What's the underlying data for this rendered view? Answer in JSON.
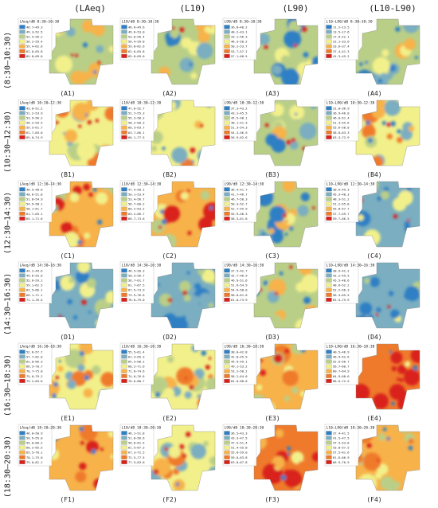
{
  "column_headers": [
    "(LAeq)",
    "(L10)",
    "(L90)",
    "(L10-L90)"
  ],
  "rows": [
    {
      "row_label": "(8:30–10:30)",
      "panels": [
        {
          "label": "(A1)",
          "legend_title": "LAeq/dB 8:30–10:30",
          "legend": [
            "46.7–49.3",
            "49.3–52.5",
            "52.5–56.2",
            "56.2–59.4",
            "59.4–62.6",
            "62.6–65.8",
            "65.8–69.0"
          ]
        },
        {
          "label": "(A2)",
          "legend_title": "L10/dB 8:30–10:30",
          "legend": [
            "46.6–49.6",
            "49.6–53.0",
            "53.0–56.4",
            "56.4–59.8",
            "59.8–62.6",
            "62.6–65.8",
            "65.8–69.0"
          ]
        },
        {
          "label": "(A3)",
          "legend_title": "L90/dB 8:30–10:30",
          "legend": [
            "36.8–40.2",
            "40.2–43.1",
            "43.1–46.3",
            "46.3–50.2",
            "50.2–53.7",
            "53.7–57.1",
            "57.1–60.5"
          ]
        },
        {
          "label": "(A4)",
          "legend_title": "L10–L90/dB 8:30–10:30",
          "legend": [
            "11.2–13.5",
            "13.5–17.6",
            "17.6–22.1",
            "22.1–33.6",
            "33.6–37.4",
            "37.4–41.3",
            "41.3–45.2"
          ]
        }
      ]
    },
    {
      "row_label": "(10:30–12:30)",
      "panels": [
        {
          "label": "(B1)",
          "legend_title": "LAeq/dB 10:30–12:30",
          "legend": [
            "43.0–51.2",
            "51.2–53.9",
            "53.9–56.2",
            "56.2–59.5",
            "59.5–61.7",
            "61.7–65.0",
            "65.0–74.9"
          ]
        },
        {
          "label": "(B2)",
          "legend_title": "L10/dB 10:30–12:30",
          "legend": [
            "47.0–52.7",
            "52.7–55.3",
            "55.3–58.2",
            "58.2–60.3",
            "60.3–63.7",
            "63.7–66.1",
            "66.1–77.5"
          ]
        },
        {
          "label": "(B3)",
          "legend_title": "L90/dB 10:30–12:30",
          "legend": [
            "37.3–43.2",
            "43.2–45.5",
            "45.5–48.1",
            "48.1–51.3",
            "51.3–54.3",
            "54.3–56.9",
            "56.9–62.6"
          ]
        },
        {
          "label": "(B4)",
          "legend_title": "L10–L90/dB 10:30–12:30",
          "legend": [
            "31.0–36.9",
            "36.9–46.0",
            "46.0–51.4",
            "51.4–55.6",
            "55.6–58.0",
            "58.0–63.3",
            "63.3–72.9"
          ]
        }
      ]
    },
    {
      "row_label": "(12:30–14:30)",
      "panels": [
        {
          "label": "(C1)",
          "legend_title": "LAeq/dB 12:30–14:30",
          "legend": [
            "46.5–48.6",
            "48.6–51.8",
            "51.8–54.9",
            "54.9–58.1",
            "58.1–61.7",
            "61.7–65.1",
            "65.1–71.6"
          ]
        },
        {
          "label": "(C2)",
          "legend_title": "L10/dB 12:30–14:30",
          "legend": [
            "47.4–50.1",
            "50.1–53.4",
            "53.4–56.7",
            "56.7–60.2",
            "60.2–63.2",
            "63.2–66.7",
            "66.7–73.6"
          ]
        },
        {
          "label": "(C3)",
          "legend_title": "L90/dB 12:30–14:30",
          "legend": [
            "36.4–41.7",
            "41.7–46.7",
            "46.7–50.3",
            "50.3–52.7",
            "52.7–55.9",
            "55.9–58.3",
            "58.3–61.8"
          ]
        },
        {
          "label": "(C4)",
          "legend_title": "L10–L90/dB 12:30–14:30",
          "legend": [
            "38.6–45.3",
            "45.3–48.3",
            "48.3–51.2",
            "51.2–55.8",
            "55.8–57.7",
            "57.7–59.7",
            "59.7–66.5"
          ]
        }
      ]
    },
    {
      "row_label": "(14:30–16:30)",
      "panels": [
        {
          "label": "(D1)",
          "legend_title": "LAeq/dB 14:30–16:30",
          "legend": [
            "44.2–49.6",
            "49.6–55.6",
            "55.6–59.1",
            "59.1–62.5",
            "62.5–66.1",
            "66.1–71.1",
            "71.1–76.5"
          ]
        },
        {
          "label": "(D2)",
          "legend_title": "L10/dB 14:30–16:30",
          "legend": [
            "46.5–50.3",
            "50.3–56.7",
            "56.7–61.7",
            "61.7–67.5",
            "67.5–73.9",
            "73.9–76.6",
            "76.6–79.0"
          ]
        },
        {
          "label": "(D3)",
          "legend_title": "L90/dB 14:30–16:30",
          "legend": [
            "37.5–42.7",
            "42.7–46.9",
            "46.9–51.6",
            "51.6–54.9",
            "54.9–58.0",
            "58.0–61.0",
            "61.0–73.9"
          ]
        },
        {
          "label": "(D4)",
          "legend_title": "L10–L90/dB 14:30–16:30",
          "legend": [
            "38.9–42.2",
            "42.2–45.5",
            "45.5–48.6",
            "48.6–52.2",
            "52.2–56.3",
            "56.3–65.5",
            "65.5–75.9"
          ]
        }
      ]
    },
    {
      "row_label": "(16:30–18:30)",
      "panels": [
        {
          "label": "(E1)",
          "legend_title": "LAeq/dB 16:30–18:30",
          "legend": [
            "52.6–57.7",
            "57.7–62.0",
            "62.0–66.3",
            "66.3–70.7",
            "70.7–75.0",
            "75.0–79.2",
            "79.2–83.6"
          ]
        },
        {
          "label": "(E2)",
          "legend_title": "L10/dB 16:30–18:30",
          "legend": [
            "55.5–61.4",
            "61.4–65.3",
            "65.3–68.2",
            "68.2–71.6",
            "71.6–74.6",
            "74.6–76.6",
            "76.6–80.7"
          ]
        },
        {
          "label": "(E3)",
          "legend_title": "L90/dB 16:30–18:30",
          "legend": [
            "38.0–42.8",
            "42.8–45.9",
            "45.9–49.1",
            "49.1–53.2",
            "53.2–58.2",
            "58.2–64.0",
            "64.0–68.0"
          ]
        },
        {
          "label": "(E4)",
          "legend_title": "L10–L90/dB 16:30–18:30",
          "legend": [
            "40.5–46.9",
            "46.9–52.6",
            "52.6–56.7",
            "56.7–60.7",
            "60.7–64.9",
            "64.9–68.6",
            "68.6–72.5"
          ]
        }
      ]
    },
    {
      "row_label": "(18:30–20:30)",
      "panels": [
        {
          "label": "(F1)",
          "legend_title": "LAeq/dB 18:30–20:30",
          "legend": [
            "46.0–50.9",
            "50.9–55.0",
            "55.0–60.2",
            "60.2–65.5",
            "65.5–70.1",
            "70.1–75.0",
            "75.0–81.1"
          ]
        },
        {
          "label": "(F2)",
          "legend_title": "L10/dB 18:30–20:30",
          "legend": [
            "46.1–51.8",
            "51.8–56.6",
            "56.6–61.5",
            "61.5–67.3",
            "67.3–72.5",
            "72.5–77.5",
            "77.5–83.0"
          ]
        },
        {
          "label": "(F3)",
          "legend_title": "L90/dB 18:30–20:30",
          "legend": [
            "36.5–43.3",
            "43.3–47.5",
            "47.5–51.4",
            "51.4–55.8",
            "55.8–59.0",
            "59.0–63.8",
            "63.8–67.8"
          ]
        },
        {
          "label": "(F4)",
          "legend_title": "L10–L90/dB 18:30–20:30",
          "legend": [
            "37.4–41.5",
            "41.5–47.5",
            "47.5–53.8",
            "53.8–57.5",
            "57.5–61.6",
            "61.6–66.9",
            "66.9–70.5"
          ]
        }
      ]
    }
  ],
  "legend_colors": [
    "#2f7fc4",
    "#7aaec0",
    "#b9cf88",
    "#f2f08a",
    "#f7b24a",
    "#ef7a2c",
    "#d9201b"
  ],
  "background_color": "#ffffff"
}
